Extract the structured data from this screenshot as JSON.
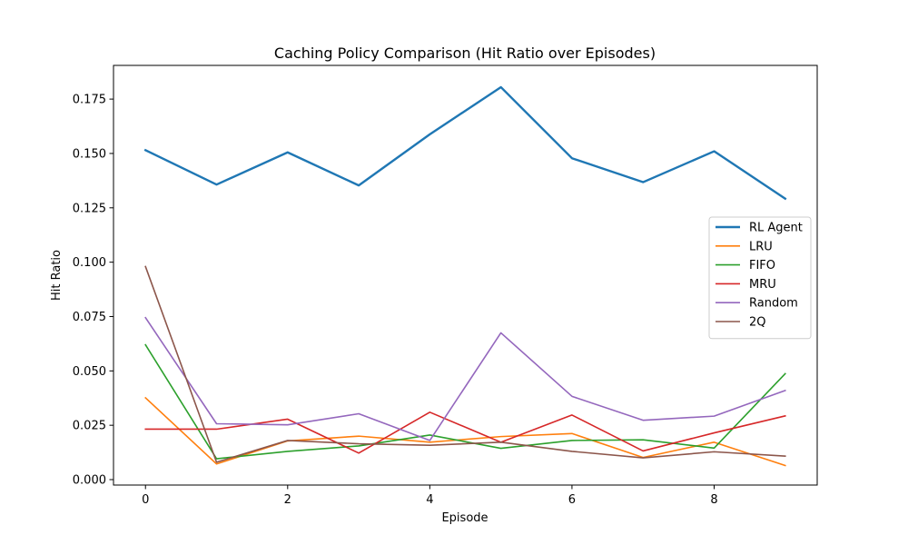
{
  "chart_data": {
    "type": "line",
    "title": "Caching Policy Comparison (Hit Ratio over Episodes)",
    "xlabel": "Episode",
    "ylabel": "Hit Ratio",
    "x": [
      0,
      1,
      2,
      3,
      4,
      5,
      6,
      7,
      8,
      9
    ],
    "xlim": [
      -0.45,
      9.45
    ],
    "ylim": [
      -0.0025,
      0.1905
    ],
    "xticks": [
      0,
      2,
      4,
      6,
      8
    ],
    "xtick_labels": [
      "0",
      "2",
      "4",
      "6",
      "8"
    ],
    "yticks": [
      0.0,
      0.025,
      0.05,
      0.075,
      0.1,
      0.125,
      0.15,
      0.175
    ],
    "ytick_labels": [
      "0.000",
      "0.025",
      "0.050",
      "0.075",
      "0.100",
      "0.125",
      "0.150",
      "0.175"
    ],
    "grid": false,
    "legend_position": "center-right",
    "series": [
      {
        "name": "RL Agent",
        "color": "#1f77b4",
        "width": 2.4,
        "values": [
          0.1515,
          0.1357,
          0.1505,
          0.1353,
          0.1588,
          0.1805,
          0.1478,
          0.1368,
          0.151,
          0.1292
        ]
      },
      {
        "name": "LRU",
        "color": "#ff7f0e",
        "width": 1.6,
        "values": [
          0.0376,
          0.0072,
          0.0178,
          0.02,
          0.0172,
          0.0198,
          0.0212,
          0.0102,
          0.0172,
          0.0065
        ]
      },
      {
        "name": "FIFO",
        "color": "#2ca02c",
        "width": 1.6,
        "values": [
          0.062,
          0.0096,
          0.013,
          0.0155,
          0.0205,
          0.0144,
          0.018,
          0.0183,
          0.0145,
          0.0487
        ]
      },
      {
        "name": "MRU",
        "color": "#d62728",
        "width": 1.6,
        "values": [
          0.0232,
          0.0232,
          0.0278,
          0.0122,
          0.031,
          0.0172,
          0.0297,
          0.0132,
          0.0215,
          0.0293
        ]
      },
      {
        "name": "Random",
        "color": "#9467bd",
        "width": 1.6,
        "values": [
          0.0745,
          0.0257,
          0.0252,
          0.0303,
          0.018,
          0.0675,
          0.0383,
          0.0273,
          0.0292,
          0.041
        ]
      },
      {
        "name": "2Q",
        "color": "#8c564b",
        "width": 1.6,
        "values": [
          0.098,
          0.008,
          0.018,
          0.0165,
          0.0158,
          0.0172,
          0.013,
          0.01,
          0.0128,
          0.0108
        ]
      }
    ]
  }
}
